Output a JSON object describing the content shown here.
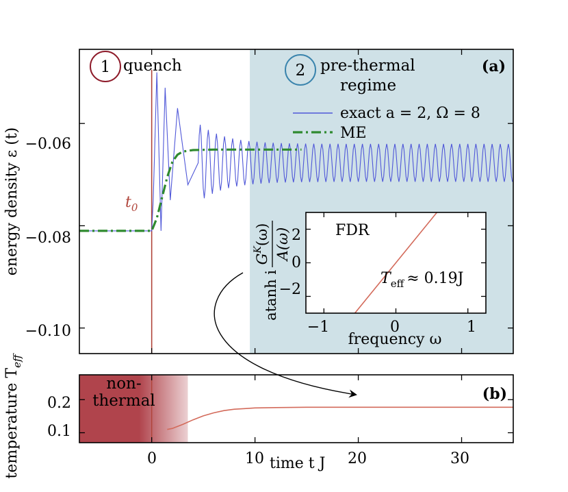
{
  "colors": {
    "exact": "#4f57d8",
    "me": "#2f8a2f",
    "t0_line": "#b0443a",
    "prethermal_band": "#cfe1e7",
    "quench_circle": "#8e1b2a",
    "prethermal_circle": "#3a84ad",
    "fdr_line": "#d36a5a",
    "temperature_line": "#d36a5a",
    "nonthermal_fill": "#b0444c"
  },
  "panel_a": {
    "tag": "(a)",
    "ylabel": "energy density ε (t)",
    "t0_label": "t",
    "t0_sub": "0",
    "stage1": {
      "number": "1",
      "label": "quench"
    },
    "stage2": {
      "number": "2",
      "label_line1": "pre-thermal",
      "label_line2": "regime"
    },
    "legend": {
      "exact": "exact a = 2, Ω = 8",
      "me": "ME"
    },
    "yticks": [
      "−0.06",
      "−0.08",
      "−0.10"
    ]
  },
  "inset": {
    "title": "FDR",
    "annotation": "T",
    "annotation_sub": "eff",
    "annotation_value": "≈ 0.19J",
    "xlabel": "frequency ω",
    "ylabel_prefix": "atanh i",
    "ylabel_num": "G",
    "ylabel_num_sup": "K",
    "ylabel_num_tail": "(ω)",
    "ylabel_den": "A(ω)",
    "xticks": [
      "−1",
      "0",
      "1"
    ],
    "yticks": [
      "2",
      "0",
      "−2"
    ]
  },
  "panel_b": {
    "tag": "(b)",
    "ylabel": "temperature T",
    "ylabel_sub": "eff",
    "nonthermal_line1": "non-",
    "nonthermal_line2": "thermal",
    "yticks": [
      "0.2",
      "0.1"
    ],
    "xticks": [
      "0",
      "10",
      "20",
      "30"
    ],
    "xlabel": "time t J"
  },
  "chart_data": [
    {
      "type": "line",
      "panel": "a",
      "xlim": [
        -7,
        35
      ],
      "ylim": [
        -0.105,
        -0.0455
      ],
      "series": [
        {
          "name": "exact a = 2, Ω = 8",
          "style": "solid",
          "x": [
            -7,
            0,
            0.15,
            0.5,
            0.9,
            1.3,
            1.8,
            2.5,
            3.5,
            5,
            7,
            9,
            12,
            15,
            20,
            25,
            30,
            35
          ],
          "y": [
            -0.081,
            -0.081,
            -0.075,
            -0.05,
            -0.081,
            -0.053,
            -0.075,
            -0.057,
            -0.072,
            -0.059,
            -0.069,
            -0.062,
            -0.07,
            -0.064,
            -0.071,
            -0.064,
            -0.071,
            -0.064
          ],
          "steady_band": [
            -0.0714,
            -0.064
          ],
          "oscillation_period": 0.785
        },
        {
          "name": "ME",
          "style": "dash-dot",
          "x": [
            -7,
            0,
            0.5,
            1,
            1.5,
            2,
            2.5,
            3,
            4,
            6,
            10,
            14.5
          ],
          "y": [
            -0.081,
            -0.081,
            -0.0785,
            -0.0745,
            -0.0705,
            -0.0675,
            -0.0661,
            -0.0655,
            -0.0652,
            -0.0651,
            -0.0651,
            -0.0651
          ]
        }
      ],
      "vertical_line": {
        "x": 0,
        "y_range": [
          -0.105,
          -0.0495
        ],
        "label": "t0"
      },
      "shaded_region": {
        "x_from": 9.5,
        "x_to": 35,
        "label": "pre-thermal regime"
      }
    },
    {
      "type": "line",
      "panel": "inset",
      "xlabel": "frequency ω",
      "xlim": [
        -1.25,
        1.25
      ],
      "ylim": [
        -3.0,
        3.0
      ],
      "series": [
        {
          "x": [
            -1.25,
            1.25
          ],
          "y": [
            -6.58,
            6.58
          ]
        }
      ],
      "slope": 5.26
    },
    {
      "type": "line",
      "panel": "b",
      "xlabel": "time t J",
      "xlim": [
        -7,
        35
      ],
      "ylim": [
        0.07,
        0.275
      ],
      "series": [
        {
          "x": [
            1.5,
            2,
            3,
            4,
            5,
            6,
            7,
            8,
            9,
            10,
            12,
            15,
            20,
            35
          ],
          "y": [
            0.11,
            0.113,
            0.125,
            0.139,
            0.151,
            0.16,
            0.167,
            0.171,
            0.173,
            0.175,
            0.176,
            0.177,
            0.177,
            0.177
          ]
        }
      ],
      "shaded_region": {
        "x_from": -7,
        "x_to": 3.5,
        "label": "non-thermal"
      },
      "xticks": [
        0,
        10,
        20,
        30
      ]
    }
  ]
}
